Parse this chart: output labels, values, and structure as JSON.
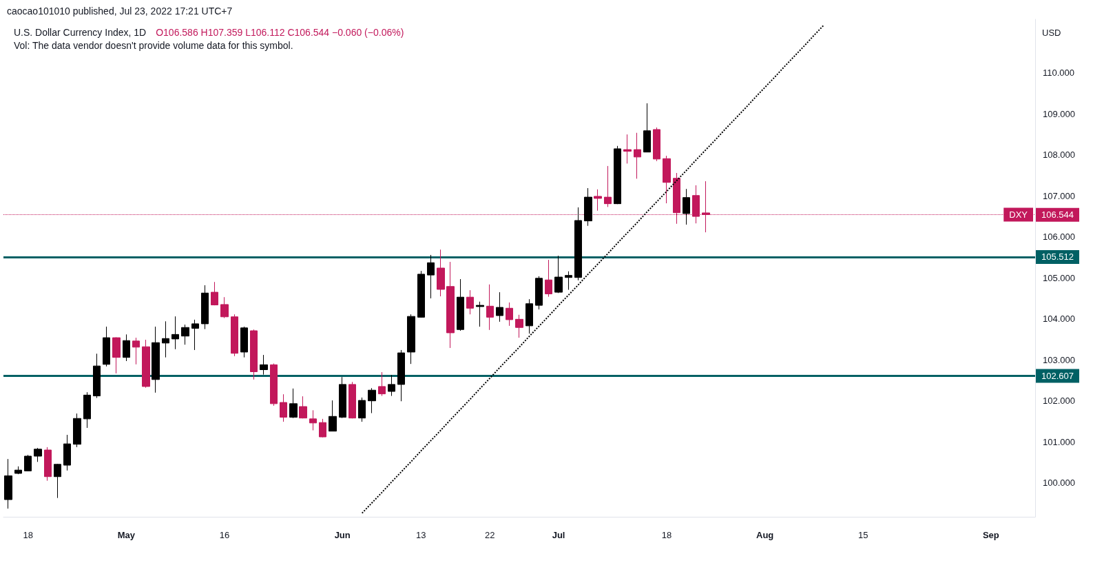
{
  "chart_data": {
    "type": "candlestick",
    "title": "U.S. Dollar Currency Index, 1D",
    "subtitle": "O106.586 H107.359 L106.112 C106.544 −0.060 (−0.06%)",
    "ylabel": "USD",
    "annotations": [
      "caocao101010 published, Jul 23, 2022 17:21 UTC+7",
      "Vol: The data vendor doesn't provide volume data for this symbol.",
      {
        "text": "DXY",
        "y": 106.544
      }
    ],
    "categories": [
      null,
      null,
      "18",
      null,
      null,
      null,
      null,
      null,
      null,
      null,
      null,
      null,
      "May",
      null,
      null,
      null,
      null,
      null,
      null,
      null,
      null,
      null,
      "16",
      null,
      null,
      null,
      null,
      null,
      null,
      null,
      null,
      null,
      null,
      null,
      "Jun",
      null,
      null,
      null,
      null,
      null,
      null,
      null,
      "13",
      null,
      null,
      null,
      null,
      null,
      null,
      "22",
      null,
      null,
      null,
      null,
      null,
      null,
      "Jul",
      null,
      null,
      null,
      null,
      null,
      null,
      null,
      null,
      null,
      null,
      "18",
      null,
      null,
      null,
      null,
      null,
      null,
      null,
      null,
      null,
      "Aug",
      null,
      null,
      null,
      null,
      null,
      null,
      null,
      null,
      null,
      "15",
      null,
      null,
      null,
      null,
      null,
      null,
      null,
      null,
      null,
      null,
      null,
      null,
      "Sep",
      null,
      null,
      null,
      null
    ],
    "series": [
      {
        "type": "candlestick",
        "ohlc": [
          [
            99.59,
            100.58,
            99.37,
            100.17
          ],
          [
            100.23,
            100.4,
            100.21,
            100.31
          ],
          [
            100.29,
            100.68,
            100.28,
            100.65
          ],
          [
            100.65,
            100.85,
            100.51,
            100.82
          ],
          [
            100.8,
            100.87,
            100.05,
            100.15
          ],
          [
            100.15,
            100.46,
            99.63,
            100.45
          ],
          [
            100.43,
            101.17,
            100.3,
            100.95
          ],
          [
            100.94,
            101.69,
            100.87,
            101.57
          ],
          [
            101.56,
            102.21,
            101.34,
            102.14
          ],
          [
            102.12,
            103.15,
            102.07,
            102.85
          ],
          [
            102.89,
            103.81,
            102.84,
            103.54
          ],
          [
            103.54,
            103.55,
            102.67,
            103.06
          ],
          [
            103.06,
            103.62,
            102.97,
            103.47
          ],
          [
            103.46,
            103.54,
            102.89,
            103.31
          ],
          [
            103.32,
            103.49,
            102.32,
            102.35
          ],
          [
            102.52,
            103.81,
            102.2,
            103.42
          ],
          [
            103.41,
            103.94,
            103.06,
            103.52
          ],
          [
            103.51,
            104.06,
            103.26,
            103.62
          ],
          [
            103.58,
            103.86,
            103.37,
            103.79
          ],
          [
            103.77,
            103.98,
            103.24,
            103.88
          ],
          [
            103.88,
            104.82,
            103.75,
            104.63
          ],
          [
            104.65,
            104.9,
            104.33,
            104.34
          ],
          [
            104.35,
            104.53,
            104.02,
            104.05
          ],
          [
            104.05,
            104.11,
            103.09,
            103.16
          ],
          [
            103.19,
            103.81,
            103.06,
            103.78
          ],
          [
            103.71,
            103.74,
            102.52,
            102.71
          ],
          [
            102.76,
            103.12,
            102.64,
            102.88
          ],
          [
            102.88,
            102.91,
            101.88,
            101.93
          ],
          [
            101.96,
            102.16,
            101.49,
            101.6
          ],
          [
            101.6,
            102.3,
            101.58,
            101.93
          ],
          [
            101.86,
            102.11,
            101.57,
            101.58
          ],
          [
            101.56,
            101.77,
            101.28,
            101.46
          ],
          [
            101.47,
            101.56,
            101.11,
            101.12
          ],
          [
            101.26,
            102.01,
            101.26,
            101.62
          ],
          [
            101.6,
            102.58,
            101.58,
            102.4
          ],
          [
            102.4,
            102.46,
            101.57,
            101.58
          ],
          [
            101.58,
            102.08,
            101.49,
            102.01
          ],
          [
            102.0,
            102.31,
            101.7,
            102.26
          ],
          [
            102.35,
            102.7,
            102.12,
            102.17
          ],
          [
            102.23,
            102.63,
            102.12,
            102.4
          ],
          [
            102.4,
            103.24,
            101.99,
            103.17
          ],
          [
            103.19,
            104.11,
            102.9,
            104.06
          ],
          [
            104.04,
            105.17,
            104.03,
            105.09
          ],
          [
            105.07,
            105.56,
            104.5,
            105.37
          ],
          [
            105.24,
            105.69,
            104.55,
            104.72
          ],
          [
            104.79,
            105.39,
            103.29,
            103.66
          ],
          [
            103.74,
            104.97,
            103.71,
            104.53
          ],
          [
            104.53,
            104.7,
            104.11,
            104.26
          ],
          [
            104.3,
            104.42,
            103.81,
            104.33
          ],
          [
            104.31,
            104.84,
            103.73,
            104.04
          ],
          [
            104.08,
            104.65,
            103.93,
            104.28
          ],
          [
            104.26,
            104.4,
            103.83,
            103.98
          ],
          [
            103.99,
            104.1,
            103.54,
            103.79
          ],
          [
            103.83,
            104.48,
            103.64,
            104.37
          ],
          [
            104.33,
            105.04,
            104.23,
            104.99
          ],
          [
            104.95,
            105.44,
            104.54,
            104.61
          ],
          [
            104.65,
            105.54,
            104.63,
            105.02
          ],
          [
            105.01,
            105.16,
            104.71,
            105.06
          ],
          [
            105.01,
            106.72,
            104.94,
            106.4
          ],
          [
            106.39,
            107.19,
            106.27,
            106.97
          ],
          [
            106.99,
            107.16,
            106.64,
            106.94
          ],
          [
            106.97,
            107.73,
            106.73,
            106.81
          ],
          [
            106.81,
            108.22,
            106.8,
            108.15
          ],
          [
            108.13,
            108.5,
            107.79,
            108.09
          ],
          [
            108.13,
            108.54,
            107.42,
            107.95
          ],
          [
            108.07,
            109.26,
            108.07,
            108.59
          ],
          [
            108.62,
            108.67,
            107.85,
            107.9
          ],
          [
            107.91,
            107.98,
            106.82,
            107.33
          ],
          [
            107.43,
            107.56,
            106.32,
            106.59
          ],
          [
            106.57,
            107.17,
            106.3,
            106.96
          ],
          [
            107.01,
            107.26,
            106.33,
            106.5
          ],
          [
            106.586,
            107.359,
            106.112,
            106.544
          ],
          null,
          null,
          null,
          null,
          null,
          null,
          null,
          null,
          null,
          null,
          null,
          null,
          null,
          null,
          null,
          null,
          null,
          null,
          null,
          null,
          null,
          null,
          null,
          null,
          null,
          null,
          null,
          null,
          null,
          null,
          null,
          null,
          null
        ],
        "colors": [
          "#000000",
          "#000000",
          "#000000",
          "#000000",
          "#c2185b",
          "#000000",
          "#000000",
          "#000000",
          "#000000",
          "#000000",
          "#000000",
          "#c2185b",
          "#000000",
          "#c2185b",
          "#c2185b",
          "#000000",
          "#000000",
          "#000000",
          "#000000",
          "#000000",
          "#000000",
          "#c2185b",
          "#c2185b",
          "#c2185b",
          "#000000",
          "#c2185b",
          "#000000",
          "#c2185b",
          "#c2185b",
          "#000000",
          "#c2185b",
          "#c2185b",
          "#c2185b",
          "#000000",
          "#000000",
          "#c2185b",
          "#000000",
          "#000000",
          "#c2185b",
          "#000000",
          "#000000",
          "#000000",
          "#000000",
          "#000000",
          "#c2185b",
          "#c2185b",
          "#000000",
          "#c2185b",
          "#000000",
          "#c2185b",
          "#000000",
          "#c2185b",
          "#c2185b",
          "#000000",
          "#000000",
          "#c2185b",
          "#000000",
          "#000000",
          "#000000",
          "#000000",
          "#c2185b",
          "#c2185b",
          "#000000",
          "#c2185b",
          "#c2185b",
          "#000000",
          "#c2185b",
          "#c2185b",
          "#c2185b",
          "#000000",
          "#c2185b",
          "#c2185b",
          null,
          null,
          null,
          null,
          null,
          null,
          null,
          null,
          null,
          null,
          null,
          null,
          null,
          null,
          null,
          null,
          null,
          null,
          null,
          null,
          null,
          null,
          null,
          null,
          null,
          null,
          null,
          null,
          null,
          null,
          null,
          null,
          null
        ]
      },
      {
        "type": "line",
        "color": "#000000",
        "line_style": "dotted",
        "marker": "none",
        "values": [
          null,
          null,
          null,
          null,
          null,
          null,
          null,
          null,
          null,
          null,
          null,
          null,
          null,
          null,
          null,
          null,
          null,
          null,
          null,
          null,
          null,
          null,
          null,
          null,
          null,
          null,
          null,
          null,
          null,
          null,
          null,
          null,
          null,
          null,
          null,
          null,
          99.26,
          99.51,
          99.76,
          100.02,
          100.27,
          100.52,
          100.78,
          101.03,
          101.28,
          101.54,
          101.79,
          102.04,
          102.3,
          102.55,
          102.81,
          103.06,
          103.31,
          103.57,
          103.82,
          104.07,
          104.33,
          104.58,
          104.83,
          105.09,
          105.34,
          105.59,
          105.85,
          106.1,
          106.35,
          106.61,
          106.86,
          107.11,
          107.37,
          107.62,
          107.88,
          108.13,
          108.38,
          108.64,
          108.89,
          109.14,
          109.4,
          109.65,
          109.9,
          110.16,
          110.41,
          110.66,
          110.92,
          111.17,
          null,
          null,
          null,
          null,
          null,
          null,
          null,
          null,
          null,
          null,
          null,
          null,
          null,
          null,
          null,
          null,
          null,
          null,
          null,
          null,
          null
        ]
      }
    ],
    "ylim": [
      99.17,
      111.31
    ],
    "yticks": [
      {
        "value": 100,
        "label": "100.000"
      },
      {
        "value": 101,
        "label": "101.000"
      },
      {
        "value": 102,
        "label": "102.000"
      },
      {
        "value": 103,
        "label": "103.000"
      },
      {
        "value": 104,
        "label": "104.000"
      },
      {
        "value": 105,
        "label": "105.000"
      },
      {
        "value": 106,
        "label": "106.000"
      },
      {
        "value": 107,
        "label": "107.000"
      },
      {
        "value": 108,
        "label": "108.000"
      },
      {
        "value": 109,
        "label": "109.000"
      },
      {
        "value": 110,
        "label": "110.000"
      }
    ],
    "ref_lines": [
      {
        "axis": "y",
        "value": 106.544,
        "label": "106.544",
        "color": "#c2185b",
        "line_style": "dotted"
      },
      {
        "axis": "y",
        "value": 105.512,
        "label": "105.512",
        "color": "#006064"
      },
      {
        "axis": "y",
        "value": 102.607,
        "label": "102.607",
        "color": "#006064"
      }
    ]
  }
}
